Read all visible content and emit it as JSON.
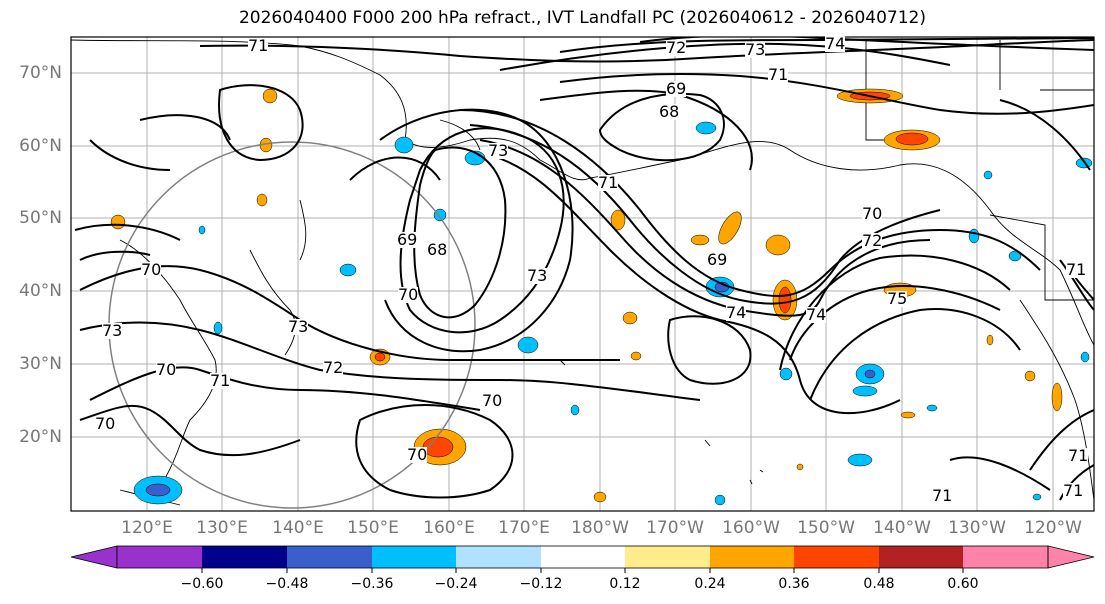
{
  "title": "2026040400 F000 200 hPa refract., IVT Landfall PC (2026040612 - 2026040712)",
  "map": {
    "lat_labels": [
      "70°N",
      "60°N",
      "50°N",
      "40°N",
      "30°N",
      "20°N"
    ],
    "lon_labels": [
      "120°E",
      "130°E",
      "140°E",
      "150°E",
      "160°E",
      "170°E",
      "180°W",
      "170°W",
      "160°W",
      "150°W",
      "140°W",
      "130°W",
      "120°W"
    ],
    "contour_labels": [
      "71",
      "72",
      "73",
      "74",
      "71",
      "69",
      "68",
      "73",
      "71",
      "69",
      "68",
      "70",
      "73",
      "70",
      "73",
      "70",
      "71",
      "72",
      "70",
      "69",
      "73",
      "74",
      "70",
      "72",
      "74",
      "75",
      "71",
      "70",
      "71",
      "71",
      "70",
      "71"
    ]
  },
  "colorbar": {
    "colors": [
      "#9932cc",
      "#00008b",
      "#3a5fcd",
      "#00bfff",
      "#b0e2ff",
      "#ffffff",
      "#ffec8b",
      "#ffa500",
      "#ff4500",
      "#b22222",
      "#ff82ab"
    ],
    "tick_labels": [
      "−0.60",
      "−0.48",
      "−0.36",
      "−0.24",
      "−0.12",
      "0.12",
      "0.24",
      "0.36",
      "0.48",
      "0.60"
    ]
  }
}
